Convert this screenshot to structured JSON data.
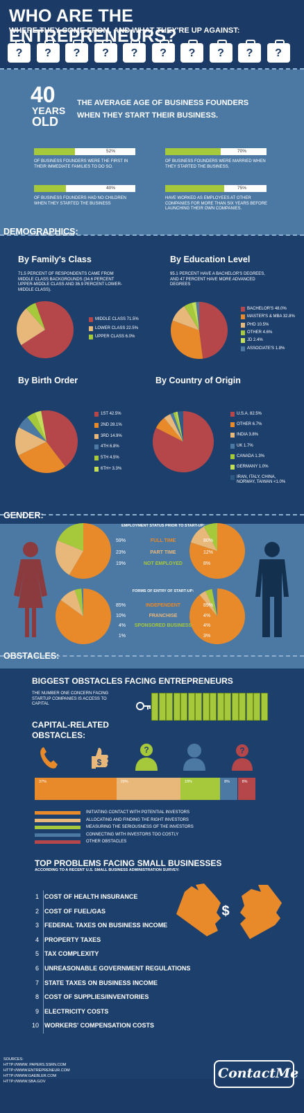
{
  "header": {
    "title": "WHO ARE THE ENTREPRENEURS?",
    "subtitle": "WHERE THEY COME FROM, AND WHAT THEY'RE UP AGAINST:",
    "icon_mark": "?"
  },
  "age": {
    "big_number": "40",
    "years": "YEARS",
    "old": "OLD",
    "headline": "THE AVERAGE AGE OF BUSINESS FOUNDERS WHEN THEY START THEIR BUSINESS."
  },
  "stats": [
    {
      "value": 52,
      "label": "52%",
      "caption": "OF BUSINESS FOUNDERS WERE THE FIRST IN THEIR IMMEDIATE FAMILIES TO DO SO."
    },
    {
      "value": 70,
      "label": "70%",
      "caption": "OF BUSINESS FOUNDERS WERE MARRIED WHEN THEY STARTED THE BUSINESS."
    },
    {
      "value": 40,
      "label": "40%",
      "caption": "OF BUSINESS FOUNDERS HAD NO CHILDREN WHEN THEY STARTED THE BUSINESS"
    },
    {
      "value": 75,
      "label": "75%",
      "caption": "HAVE WORKED AS EMPLOYEES AT OTHER COMPANIES FOR MORE THAN SIX YEARS BEFORE LAUNCHING THEIR OWN COMPANIES."
    }
  ],
  "demographics": {
    "title": "DEMOGRAPHICS:",
    "subtitle": "U.S. ENTREPRENEURS",
    "family_title": "By Family's Class",
    "family_note": "71.5 PERCENT OF RESPONDENTS CAME FROM MIDDLE CLASS BACKGROUNDS (34.6 PERCENT UPPER-MIDDLE CLASS AND 36.9 PERCENT LOWER-MIDDLE CLASS).",
    "education_title": "By Education Level",
    "education_note": "95.1 PERCENT HAVE A BACHELOR'S DEGREES, AND 47 PERCENT HAVE MORE ADVANCED DEGREES",
    "birth_title": "By Birth Order",
    "country_title": "By Country of Origin"
  },
  "gender": {
    "title": "GENDER:",
    "employment_title": "EMPLOYMENT STATUS PRIOR TO START-UP:",
    "forms_title": "FORMS OF ENTRY OF START-UP:",
    "employment_rows": [
      {
        "female": "59%",
        "label": "FULL TIME",
        "male": "80%",
        "color": "#e8892a"
      },
      {
        "female": "23%",
        "label": "PART TIME",
        "male": "12%",
        "color": "#e8b87a"
      },
      {
        "female": "19%",
        "label": "NOT EMPLOYED",
        "male": "8%",
        "color": "#a6c93b"
      }
    ],
    "forms_rows": [
      {
        "female": "85%",
        "label": "INDEPENDENT",
        "male": "89%",
        "color": "#e8892a"
      },
      {
        "female": "10%",
        "label": "FRANCHISE",
        "male": "4%",
        "color": "#e8b87a"
      },
      {
        "female": "4%",
        "label": "SPONSORED BUSINESS",
        "male": "4%",
        "color": "#a6c93b"
      },
      {
        "female": "1%",
        "label": "PURCHASE",
        "male": "3%",
        "color": "#4c79a3"
      }
    ]
  },
  "obstacles": {
    "title": "OBSTACLES:",
    "biggest_title": "BIGGEST OBSTACLES FACING ENTREPRENEURS",
    "biggest_note": "THE NUMBER ONE CONCERN FACING STARTUP COMPANIES IS ACCESS TO CAPITAL",
    "capital_title_1": "CAPITAL-RELATED",
    "capital_title_2": "OBSTACLES:",
    "dollar": "$",
    "question": "?",
    "top_title": "TOP PROBLEMS FACING SMALL BUSINESSES",
    "top_subtitle": "ACCORDING TO A RECENT U.S. SMALL BUSINESS ADMINISTRATION SURVEY:",
    "problems": [
      {
        "n": "1",
        "text": "COST OF HEALTH INSURANCE"
      },
      {
        "n": "2",
        "text": "COST OF FUEL/GAS"
      },
      {
        "n": "3",
        "text": "FEDERAL TAXES ON BUSINESS INCOME"
      },
      {
        "n": "4",
        "text": "PROPERTY TAXES"
      },
      {
        "n": "5",
        "text": "TAX COMPLEXITY"
      },
      {
        "n": "6",
        "text": "UNREASONABLE GOVERNMENT REGULATIONS"
      },
      {
        "n": "7",
        "text": "STATE TAXES ON BUSINESS INCOME"
      },
      {
        "n": "8",
        "text": "COST OF SUPPLIES/INVENTORIES"
      },
      {
        "n": "9",
        "text": "ELECTRICITY COSTS"
      },
      {
        "n": "10",
        "text": "WORKERS' COMPENSATION COSTS"
      }
    ]
  },
  "footer": {
    "sources_label": "SOURCES:",
    "sources": [
      "HTTP://WWW. PAPERS.SSRN.COM",
      "HTTP://WWW.ENTREPRENEUR.COM",
      "HTTP://WWW.GAEBLER.COM",
      "HTTP://WWW.SBA.GOV"
    ],
    "brand": "ContactMe"
  },
  "chart_data": [
    {
      "id": "family",
      "type": "pie",
      "labels": [
        "MIDDLE CLASS 71.5%",
        "LOWER CLASS 22.5%",
        "UPPER CLASS 6.0%"
      ],
      "values": [
        71.5,
        22.5,
        6.0
      ],
      "colors": [
        "#b5474a",
        "#e8b87a",
        "#a6c93b"
      ]
    },
    {
      "id": "education",
      "type": "pie",
      "labels": [
        "BACHELOR'S 48.0%",
        "MASTER'S & MBA 32.8%",
        "PHD 10.5%",
        "OTHER 4.6%",
        "JD 2.4%",
        "ASSOCIATE'S 1.8%"
      ],
      "values": [
        48.0,
        32.8,
        10.5,
        4.6,
        2.4,
        1.8
      ],
      "colors": [
        "#b5474a",
        "#e8892a",
        "#e8b87a",
        "#a6c93b",
        "#c5de5a",
        "#4c79a3"
      ]
    },
    {
      "id": "birth",
      "type": "pie",
      "labels": [
        "1ST 42.5%",
        "2ND 28.1%",
        "3RD 14.9%",
        "4TH 6.8%",
        "5TH 4.5%",
        "6TH+ 3.3%"
      ],
      "values": [
        42.5,
        28.1,
        14.9,
        6.8,
        4.5,
        3.3
      ],
      "colors": [
        "#b5474a",
        "#e8892a",
        "#e8b87a",
        "#4c79a3",
        "#a6c93b",
        "#c5de5a"
      ]
    },
    {
      "id": "country",
      "type": "pie",
      "labels": [
        "U.S.A. 82.5%",
        "OTHER 6.7%",
        "INDIA 3.8%",
        "UK 1.7%",
        "CANADA 1.3%",
        "GERMANY 1.0%",
        "IRAN, ITALY, CHINA, NORWAY, TAIWAN <1.0%"
      ],
      "values": [
        82.5,
        6.7,
        3.8,
        1.7,
        1.3,
        1.0,
        3.0
      ],
      "colors": [
        "#b5474a",
        "#e8892a",
        "#e8b87a",
        "#4c79a3",
        "#a6c93b",
        "#c5de5a",
        "#2f5a86"
      ]
    },
    {
      "id": "female_employment",
      "type": "pie",
      "labels": [
        "FULL TIME",
        "PART TIME",
        "NOT EMPLOYED"
      ],
      "values": [
        59,
        23,
        19
      ],
      "colors": [
        "#e8892a",
        "#e8b87a",
        "#a6c93b"
      ]
    },
    {
      "id": "male_employment",
      "type": "pie",
      "labels": [
        "FULL TIME",
        "PART TIME",
        "NOT EMPLOYED"
      ],
      "values": [
        80,
        12,
        8
      ],
      "colors": [
        "#e8892a",
        "#e8b87a",
        "#a6c93b"
      ]
    },
    {
      "id": "female_forms",
      "type": "pie",
      "labels": [
        "INDEPENDENT",
        "FRANCHISE",
        "SPONSORED BUSINESS",
        "PURCHASE"
      ],
      "values": [
        85,
        10,
        4,
        1
      ],
      "colors": [
        "#e8892a",
        "#e8b87a",
        "#a6c93b",
        "#4c79a3"
      ]
    },
    {
      "id": "male_forms",
      "type": "pie",
      "labels": [
        "INDEPENDENT",
        "FRANCHISE",
        "SPONSORED BUSINESS",
        "PURCHASE"
      ],
      "values": [
        89,
        4,
        4,
        3
      ],
      "colors": [
        "#e8892a",
        "#e8b87a",
        "#a6c93b",
        "#4c79a3"
      ]
    },
    {
      "id": "capital",
      "type": "bar",
      "orientation": "horizontal-stacked",
      "categories": [
        "INITIATING CONTACT WITH POTENTIAL INVESTORS",
        "ALLOCATING AND FINDING THE RIGHT INVESTORS",
        "MEASURING THE SERIOUSNESS OF THE INVESTORS",
        "CONNECTING WITH INVESTORS TOO COSTLY",
        "OTHER OBSTACLES"
      ],
      "values": [
        37,
        29,
        18,
        8,
        8
      ],
      "value_labels": [
        "37%",
        "29%",
        "18%",
        "8%",
        "8%"
      ],
      "colors": [
        "#e8892a",
        "#e8b87a",
        "#a6c93b",
        "#4c79a3",
        "#b5474a"
      ]
    }
  ]
}
